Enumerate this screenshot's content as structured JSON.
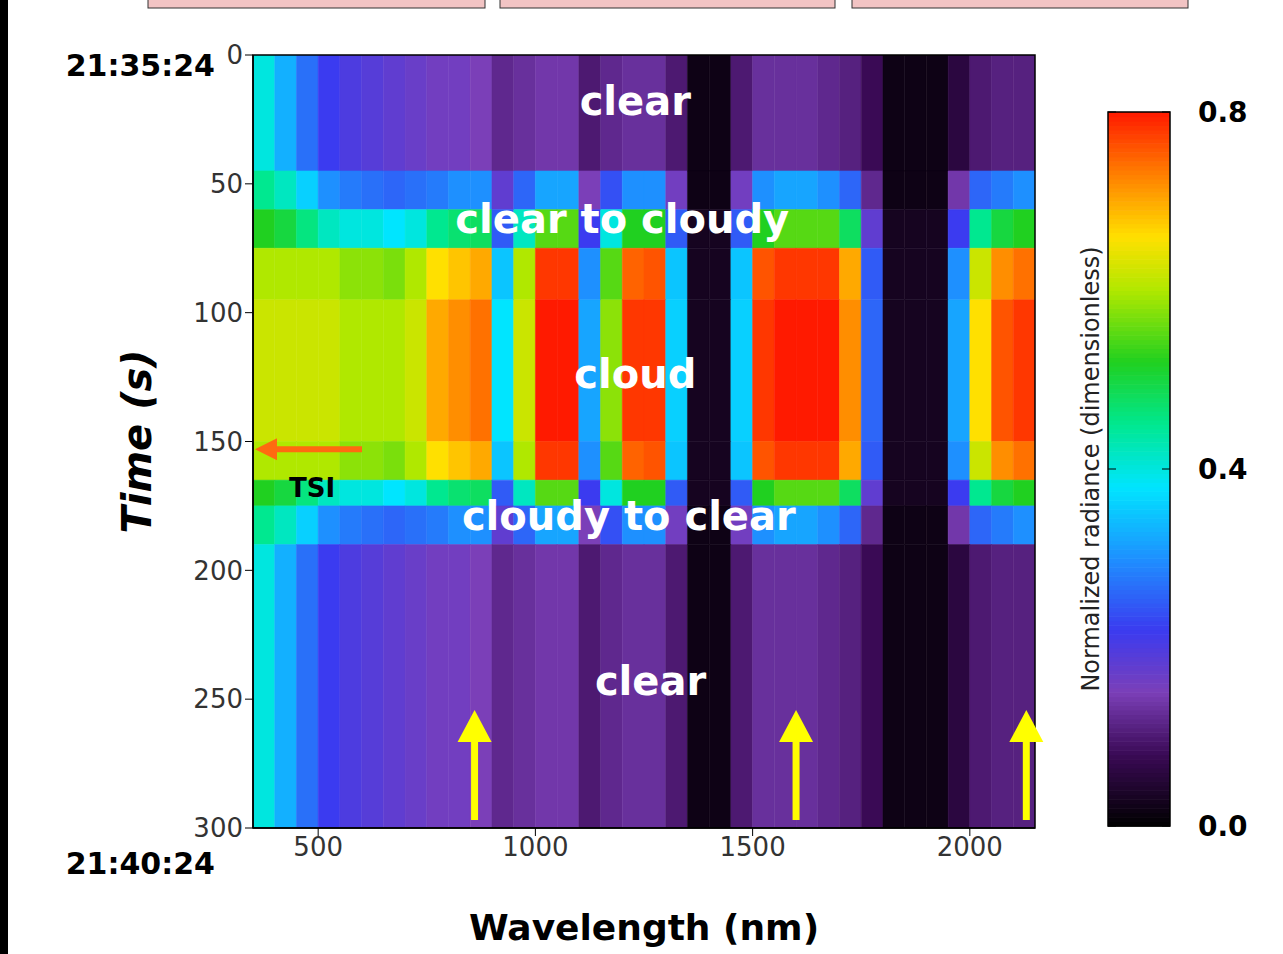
{
  "chart_data": {
    "type": "heatmap",
    "x_label": "Wavelength (nm)",
    "y_label": "Time (s)",
    "xlim": [
      350,
      2150
    ],
    "xticks": [
      500,
      1000,
      1500,
      2000
    ],
    "ylim": [
      0,
      300
    ],
    "yticks": [
      0,
      50,
      100,
      150,
      200,
      250,
      300
    ],
    "x_bins": [
      350,
      400,
      450,
      500,
      550,
      600,
      650,
      700,
      750,
      800,
      850,
      900,
      950,
      1000,
      1050,
      1100,
      1150,
      1200,
      1250,
      1300,
      1350,
      1400,
      1450,
      1500,
      1550,
      1600,
      1650,
      1700,
      1750,
      1800,
      1850,
      1900,
      1950,
      2000,
      2050,
      2100,
      2150
    ],
    "y_bins": [
      0,
      45,
      60,
      75,
      95,
      150,
      165,
      175,
      190,
      300
    ],
    "cells": [
      [
        0.4,
        0.33,
        0.27,
        0.22,
        0.2,
        0.19,
        0.18,
        0.17,
        0.16,
        0.16,
        0.15,
        0.12,
        0.13,
        0.14,
        0.14,
        0.1,
        0.12,
        0.13,
        0.13,
        0.1,
        0.02,
        0.02,
        0.1,
        0.13,
        0.13,
        0.13,
        0.12,
        0.11,
        0.08,
        0.02,
        0.02,
        0.02,
        0.06,
        0.1,
        0.11,
        0.11
      ],
      [
        0.45,
        0.42,
        0.36,
        0.3,
        0.28,
        0.27,
        0.26,
        0.27,
        0.28,
        0.3,
        0.3,
        0.18,
        0.26,
        0.32,
        0.32,
        0.15,
        0.24,
        0.3,
        0.3,
        0.16,
        0.02,
        0.02,
        0.16,
        0.3,
        0.32,
        0.32,
        0.3,
        0.26,
        0.12,
        0.02,
        0.02,
        0.02,
        0.14,
        0.26,
        0.28,
        0.3
      ],
      [
        0.52,
        0.5,
        0.46,
        0.42,
        0.4,
        0.4,
        0.38,
        0.4,
        0.45,
        0.47,
        0.48,
        0.25,
        0.42,
        0.55,
        0.55,
        0.22,
        0.4,
        0.52,
        0.52,
        0.25,
        0.03,
        0.03,
        0.25,
        0.52,
        0.55,
        0.55,
        0.55,
        0.48,
        0.18,
        0.03,
        0.03,
        0.03,
        0.22,
        0.45,
        0.5,
        0.52
      ],
      [
        0.6,
        0.6,
        0.6,
        0.6,
        0.58,
        0.58,
        0.57,
        0.6,
        0.66,
        0.68,
        0.7,
        0.35,
        0.6,
        0.78,
        0.78,
        0.3,
        0.55,
        0.75,
        0.76,
        0.35,
        0.03,
        0.03,
        0.35,
        0.76,
        0.78,
        0.78,
        0.78,
        0.7,
        0.25,
        0.03,
        0.03,
        0.03,
        0.3,
        0.62,
        0.72,
        0.74
      ],
      [
        0.62,
        0.62,
        0.62,
        0.62,
        0.6,
        0.6,
        0.6,
        0.62,
        0.7,
        0.72,
        0.74,
        0.38,
        0.62,
        0.8,
        0.8,
        0.32,
        0.58,
        0.78,
        0.78,
        0.36,
        0.03,
        0.03,
        0.36,
        0.78,
        0.8,
        0.8,
        0.8,
        0.72,
        0.26,
        0.03,
        0.03,
        0.03,
        0.32,
        0.66,
        0.76,
        0.78
      ],
      [
        0.6,
        0.6,
        0.6,
        0.6,
        0.58,
        0.58,
        0.57,
        0.6,
        0.66,
        0.68,
        0.7,
        0.35,
        0.6,
        0.78,
        0.78,
        0.3,
        0.55,
        0.75,
        0.76,
        0.35,
        0.03,
        0.03,
        0.35,
        0.76,
        0.78,
        0.78,
        0.78,
        0.7,
        0.25,
        0.03,
        0.03,
        0.03,
        0.3,
        0.62,
        0.72,
        0.74
      ],
      [
        0.52,
        0.5,
        0.46,
        0.42,
        0.4,
        0.4,
        0.38,
        0.4,
        0.45,
        0.47,
        0.48,
        0.25,
        0.42,
        0.55,
        0.55,
        0.22,
        0.4,
        0.52,
        0.52,
        0.25,
        0.03,
        0.03,
        0.25,
        0.52,
        0.55,
        0.55,
        0.55,
        0.48,
        0.18,
        0.03,
        0.03,
        0.03,
        0.22,
        0.45,
        0.5,
        0.52
      ],
      [
        0.45,
        0.42,
        0.36,
        0.3,
        0.28,
        0.27,
        0.26,
        0.27,
        0.28,
        0.3,
        0.3,
        0.18,
        0.26,
        0.32,
        0.32,
        0.15,
        0.24,
        0.3,
        0.3,
        0.16,
        0.02,
        0.02,
        0.16,
        0.3,
        0.32,
        0.32,
        0.3,
        0.26,
        0.12,
        0.02,
        0.02,
        0.02,
        0.14,
        0.26,
        0.28,
        0.3
      ],
      [
        0.4,
        0.33,
        0.27,
        0.22,
        0.2,
        0.19,
        0.18,
        0.17,
        0.16,
        0.16,
        0.15,
        0.12,
        0.13,
        0.14,
        0.14,
        0.1,
        0.12,
        0.13,
        0.13,
        0.1,
        0.02,
        0.02,
        0.1,
        0.13,
        0.13,
        0.13,
        0.12,
        0.11,
        0.08,
        0.02,
        0.02,
        0.02,
        0.06,
        0.1,
        0.11,
        0.11
      ]
    ],
    "colorbar": {
      "label": "Normalized radiance (dimensionless)",
      "range": [
        0,
        0.8
      ],
      "ticks": [
        {
          "value": 0,
          "label": "0.0"
        },
        0.4,
        0.8
      ]
    },
    "annotations": [
      {
        "text": "clear",
        "x": 1230,
        "y": 19
      },
      {
        "text": "clear to cloudy",
        "x": 1200,
        "y": 65
      },
      {
        "text": "cloud",
        "x": 1230,
        "y": 125
      },
      {
        "text": "cloudy to clear",
        "x": 1215,
        "y": 180
      },
      {
        "text": "clear",
        "x": 1265,
        "y": 244
      }
    ],
    "time_labels": [
      {
        "text": "21:35:24",
        "y": 0
      },
      {
        "text": "21:40:24",
        "y": 300
      }
    ],
    "tsi": {
      "text": "TSI",
      "y": 153
    },
    "arrows_x": [
      860,
      1600,
      2130
    ]
  }
}
